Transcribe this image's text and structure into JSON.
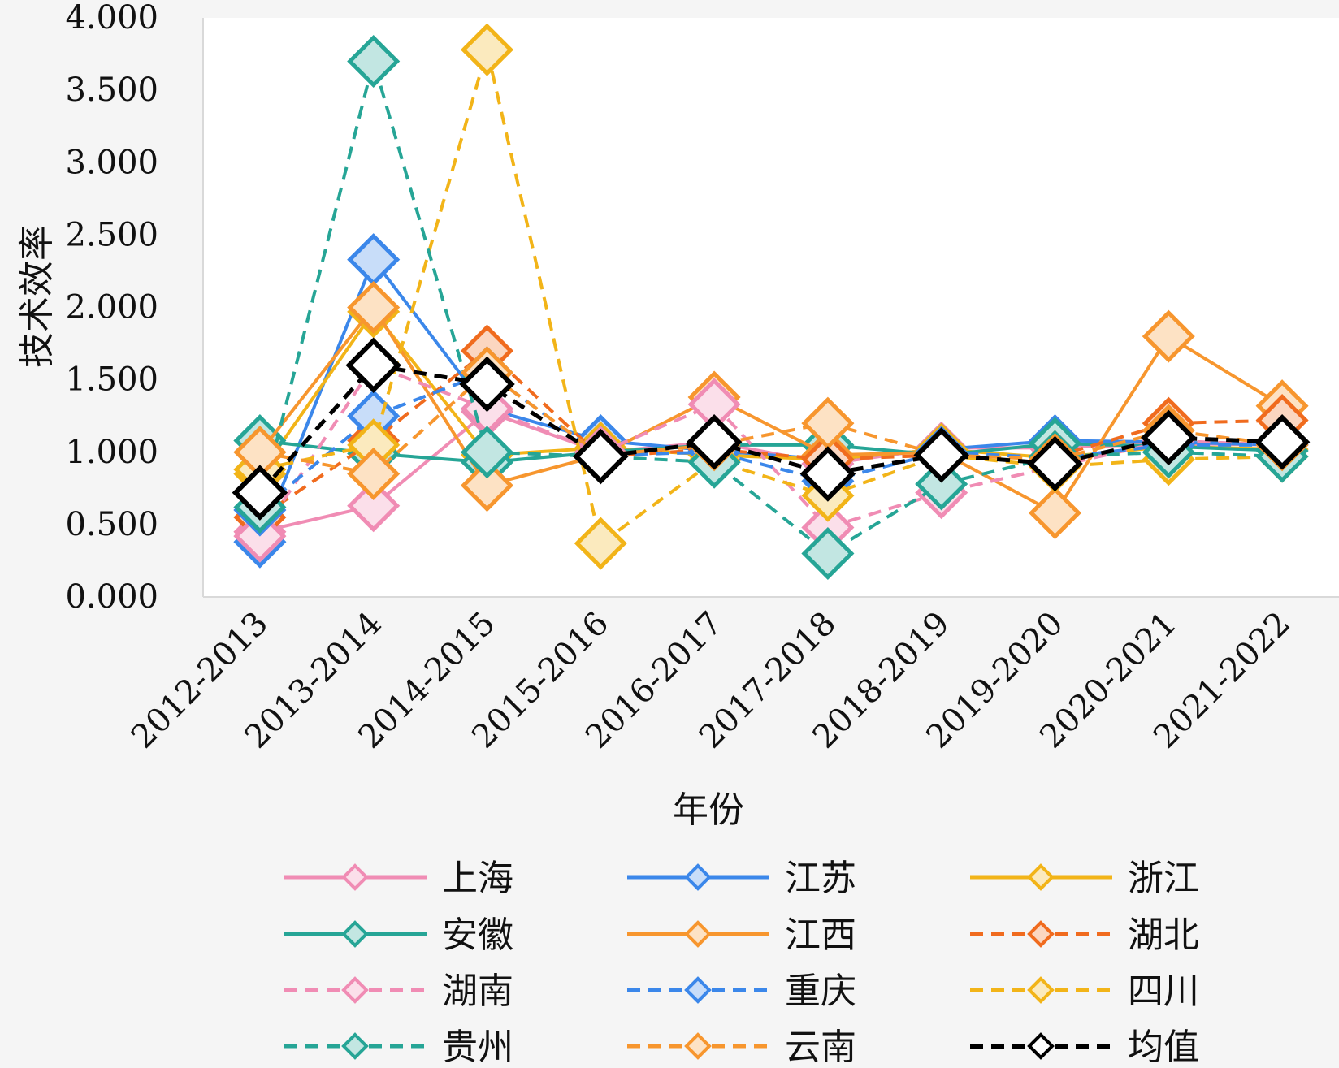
{
  "chart_data": {
    "type": "line",
    "title": "",
    "xlabel": "年份",
    "ylabel": "技术效率",
    "ylim": [
      0,
      4
    ],
    "yticks": [
      "0.000",
      "0.500",
      "1.000",
      "1.500",
      "2.000",
      "2.500",
      "3.000",
      "3.500",
      "4.000"
    ],
    "grid": false,
    "legend_position": "bottom",
    "categories": [
      "2012-2013",
      "2013-2014",
      "2014-2015",
      "2015-2016",
      "2016-2017",
      "2017-2018",
      "2018-2019",
      "2019-2020",
      "2020-2021",
      "2021-2022"
    ],
    "series": [
      {
        "name": "上海",
        "color": "#f08cb4",
        "dash": "solid",
        "values": [
          0.45,
          0.63,
          1.28,
          1.0,
          1.07,
          0.92,
          1.03,
          1.03,
          1.06,
          1.05
        ]
      },
      {
        "name": "江苏",
        "color": "#3b87ea",
        "dash": "solid",
        "values": [
          0.38,
          2.33,
          1.3,
          1.08,
          1.01,
          0.95,
          1.02,
          1.08,
          1.07,
          1.05
        ]
      },
      {
        "name": "浙江",
        "color": "#f2b418",
        "dash": "solid",
        "values": [
          0.85,
          1.97,
          0.98,
          1.03,
          0.98,
          0.95,
          1.02,
          0.96,
          1.04,
          1.02
        ]
      },
      {
        "name": "安徽",
        "color": "#26a596",
        "dash": "solid",
        "values": [
          1.08,
          0.99,
          0.93,
          1.0,
          1.05,
          1.05,
          0.98,
          1.06,
          1.04,
          1.01
        ]
      },
      {
        "name": "江西",
        "color": "#f7962e",
        "dash": "solid",
        "values": [
          1.0,
          2.0,
          0.77,
          0.98,
          1.38,
          0.98,
          1.0,
          0.58,
          1.8,
          1.32
        ]
      },
      {
        "name": "湖北",
        "color": "#f06b1e",
        "dash": "dash",
        "values": [
          0.55,
          1.08,
          1.7,
          0.97,
          1.02,
          0.95,
          0.98,
          0.97,
          1.2,
          1.22
        ]
      },
      {
        "name": "湖南",
        "color": "#f08cb4",
        "dash": "dash",
        "values": [
          0.42,
          1.6,
          1.3,
          1.0,
          1.33,
          0.48,
          0.72,
          0.9,
          1.08,
          1.05
        ]
      },
      {
        "name": "重庆",
        "color": "#3b87ea",
        "dash": "dash",
        "values": [
          0.6,
          1.25,
          1.55,
          0.98,
          1.0,
          0.8,
          1.0,
          0.96,
          1.05,
          1.05
        ]
      },
      {
        "name": "四川",
        "color": "#f2b418",
        "dash": "dash",
        "values": [
          0.88,
          1.05,
          3.78,
          0.37,
          0.94,
          0.7,
          0.98,
          0.9,
          0.95,
          0.97
        ]
      },
      {
        "name": "贵州",
        "color": "#26a596",
        "dash": "dash",
        "values": [
          0.62,
          3.7,
          1.0,
          0.97,
          0.93,
          0.3,
          0.78,
          0.97,
          1.0,
          0.97
        ]
      },
      {
        "name": "云南",
        "color": "#f7962e",
        "dash": "dash",
        "values": [
          1.0,
          0.85,
          1.55,
          0.98,
          1.05,
          1.2,
          0.98,
          0.95,
          1.15,
          1.05
        ]
      },
      {
        "name": "均值",
        "color": "#000000",
        "dash": "dash",
        "values": [
          0.72,
          1.6,
          1.47,
          0.97,
          1.07,
          0.85,
          0.98,
          0.92,
          1.1,
          1.07
        ]
      }
    ]
  }
}
